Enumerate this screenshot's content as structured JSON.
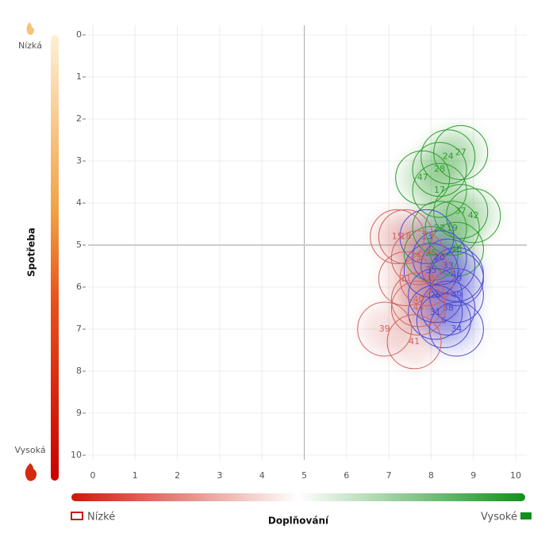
{
  "chart_data": {
    "type": "scatter",
    "y_axis_label": "Spotřeba",
    "x_axis_label": "Doplňování",
    "y_low_label": "Nízká",
    "y_high_label": "Vysoká",
    "x_low_label": "Nízké",
    "x_high_label": "Vysoké",
    "xlim": [
      0,
      10
    ],
    "ylim": [
      0,
      10
    ],
    "y_reversed": true,
    "xticks": [
      0,
      1,
      2,
      3,
      4,
      5,
      6,
      7,
      8,
      9,
      10
    ],
    "yticks": [
      0,
      1,
      2,
      3,
      4,
      5,
      6,
      7,
      8,
      9,
      10
    ],
    "grid": true,
    "reference_x": 5,
    "reference_y": 5,
    "series": [
      {
        "color": "#2e9e2e",
        "x": [
          8.7,
          8.4,
          8.2,
          7.8,
          8.2,
          8.7,
          9.0,
          8.2,
          8.5,
          8.6,
          8.0
        ],
        "values": [
          2.8,
          2.9,
          3.2,
          3.4,
          3.7,
          4.2,
          4.3,
          4.6,
          4.6,
          5.1,
          5.2
        ],
        "labels": [
          "27",
          "24",
          "28",
          "47",
          "17",
          "37",
          "42",
          "22",
          "19",
          "48",
          "25"
        ]
      },
      {
        "color": "#4a4ad0",
        "x": [
          7.9,
          8.2,
          8.4,
          8.6,
          8.6,
          8.0,
          8.6,
          8.1,
          8.4,
          8.1,
          8.3,
          8.6
        ],
        "values": [
          4.8,
          5.3,
          5.5,
          5.7,
          5.8,
          5.6,
          6.2,
          6.2,
          6.5,
          6.6,
          6.8,
          7.0
        ],
        "labels": [
          "13",
          "20",
          "33",
          "46",
          "29",
          "35",
          "49",
          "26",
          "38",
          "31",
          "6",
          "34"
        ]
      },
      {
        "color": "#d0625c",
        "x": [
          7.2,
          7.4,
          7.4,
          7.7,
          7.9,
          7.7,
          7.7,
          6.9,
          7.6
        ],
        "values": [
          4.8,
          4.8,
          5.8,
          5.3,
          5.8,
          6.3,
          6.5,
          7.0,
          7.3
        ],
        "labels": [
          "15",
          "18",
          "11",
          "3",
          "30",
          "40",
          "44",
          "39",
          "41"
        ]
      }
    ]
  }
}
